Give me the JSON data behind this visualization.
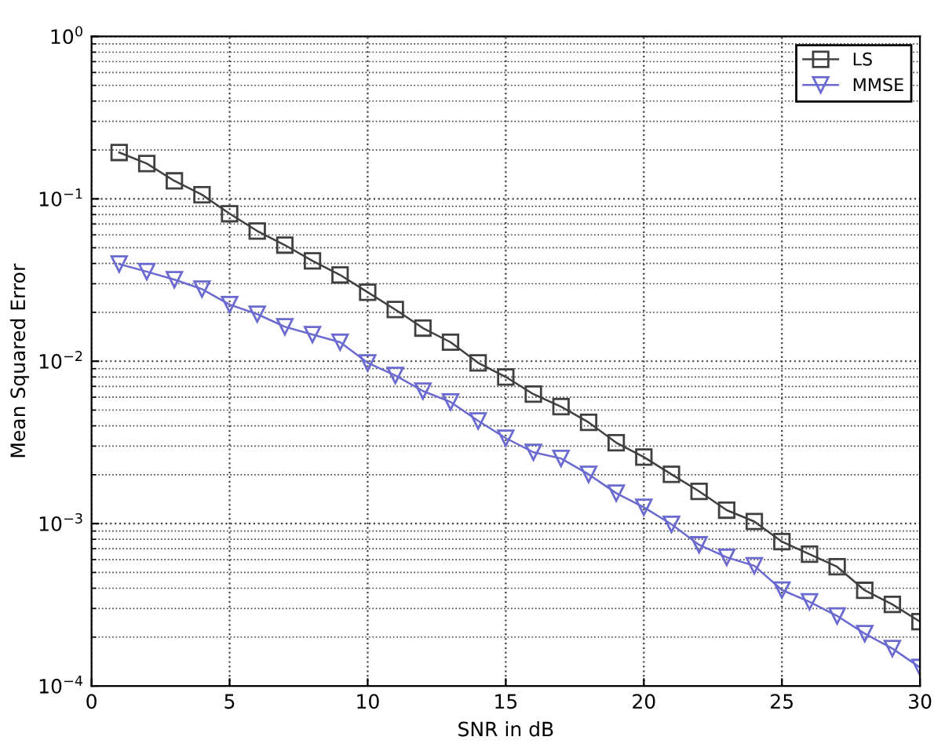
{
  "chart_data": {
    "type": "line",
    "xlabel": "SNR in dB",
    "ylabel": "Mean Squared Error",
    "x": [
      1,
      2,
      3,
      4,
      5,
      6,
      7,
      8,
      9,
      10,
      11,
      12,
      13,
      14,
      15,
      16,
      17,
      18,
      19,
      20,
      21,
      22,
      23,
      24,
      25,
      26,
      27,
      28,
      29,
      30
    ],
    "series": [
      {
        "name": "LS",
        "color": "#404040",
        "marker": "square",
        "values": [
          0.193,
          0.165,
          0.129,
          0.106,
          0.081,
          0.0634,
          0.0519,
          0.0415,
          0.034,
          0.0266,
          0.0208,
          0.016,
          0.0131,
          0.00977,
          0.008,
          0.00627,
          0.00525,
          0.0042,
          0.00315,
          0.00257,
          0.00201,
          0.00158,
          0.00121,
          0.00103,
          0.000774,
          0.000648,
          0.000542,
          0.000388,
          0.000318,
          0.000249
        ]
      },
      {
        "name": "MMSE",
        "color": "#6a6ad0",
        "marker": "triangle",
        "values": [
          0.0397,
          0.0356,
          0.0318,
          0.0278,
          0.0223,
          0.0195,
          0.0163,
          0.0146,
          0.0131,
          0.00977,
          0.00818,
          0.00655,
          0.00561,
          0.00429,
          0.00336,
          0.00275,
          0.00252,
          0.00201,
          0.00154,
          0.00126,
          0.00099,
          0.00074,
          0.00062,
          0.00055,
          0.00039,
          0.00033,
          0.00027,
          0.00021,
          0.00017,
          0.00013
        ]
      }
    ],
    "log": "y",
    "xlim": [
      0,
      30
    ],
    "xticks": [
      0,
      5,
      10,
      15,
      20,
      25,
      30
    ],
    "ylim": [
      0.0001,
      1
    ],
    "yticks": [
      {
        "value": 0.0001,
        "label": "10$^{−4}$"
      },
      {
        "value": 0.001,
        "label": "10$^{−3}$"
      },
      {
        "value": 0.01,
        "label": "10$^{−2}$"
      },
      {
        "value": 0.1,
        "label": "10$^{−1}$"
      },
      {
        "value": 1,
        "label": "10$^{0}$"
      }
    ],
    "grid": true,
    "legend": "top right",
    "line_style": "solid"
  }
}
